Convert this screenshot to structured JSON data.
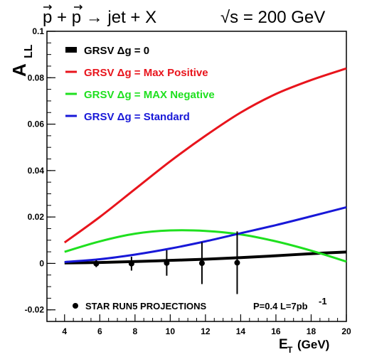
{
  "chart_data": {
    "type": "line",
    "title_left": "p + p → jet + X",
    "title_right": "√s = 200 GeV",
    "xlabel": "E",
    "xlabel_sub": "T",
    "xlabel_unit": "(GeV)",
    "ylabel": "A",
    "ylabel_sub": "LL",
    "xlim": [
      3,
      20
    ],
    "ylim": [
      -0.025,
      0.1
    ],
    "x_ticks": [
      4,
      6,
      8,
      10,
      12,
      14,
      16,
      18,
      20
    ],
    "x_tick_labels": [
      "4",
      "6",
      "8",
      "10",
      "12",
      "14",
      "16",
      "18",
      "20"
    ],
    "y_ticks": [
      -0.02,
      0,
      0.02,
      0.04,
      0.06,
      0.08,
      0.1
    ],
    "y_tick_labels": [
      "-0.02",
      "0",
      "0.02",
      "0.04",
      "0.06",
      "0.08",
      "0.1"
    ],
    "grid": false,
    "legend_position": "top-left",
    "series": [
      {
        "name": "GRSV Δg = 0",
        "color": "#000000",
        "x": [
          4,
          6,
          8,
          10,
          12,
          14,
          16,
          18,
          20
        ],
        "y": [
          0.0002,
          0.0004,
          0.0008,
          0.0013,
          0.0018,
          0.0025,
          0.0033,
          0.0042,
          0.0049
        ]
      },
      {
        "name": "GRSV Δg = Max Positive",
        "color": "#e8141c",
        "x": [
          4,
          6,
          8,
          10,
          12,
          14,
          16,
          18,
          20
        ],
        "y": [
          0.009,
          0.02,
          0.032,
          0.044,
          0.055,
          0.065,
          0.073,
          0.079,
          0.084
        ]
      },
      {
        "name": "GRSV Δg = MAX Negative",
        "color": "#1fe01f",
        "x": [
          4,
          6,
          8,
          10,
          12,
          14,
          16,
          18,
          20
        ],
        "y": [
          0.005,
          0.0095,
          0.0128,
          0.0142,
          0.014,
          0.0125,
          0.0095,
          0.0055,
          0.0008
        ]
      },
      {
        "name": "GRSV Δg = Standard",
        "color": "#1818d8",
        "x": [
          4,
          6,
          8,
          10,
          12,
          14,
          16,
          18,
          20
        ],
        "y": [
          0.0006,
          0.0018,
          0.0038,
          0.0064,
          0.0095,
          0.013,
          0.0165,
          0.0203,
          0.0242
        ]
      }
    ],
    "projections": {
      "name": "STAR RUN5 PROJECTIONS",
      "note": "P=0.4 L=7pb",
      "note_sup": "-1",
      "x": [
        5.8,
        7.8,
        9.8,
        11.8,
        13.8
      ],
      "y": [
        -0.0001,
        -0.0001,
        0.0002,
        0.0001,
        0.0003
      ],
      "err": [
        0.0015,
        0.003,
        0.0055,
        0.009,
        0.0135
      ]
    }
  }
}
